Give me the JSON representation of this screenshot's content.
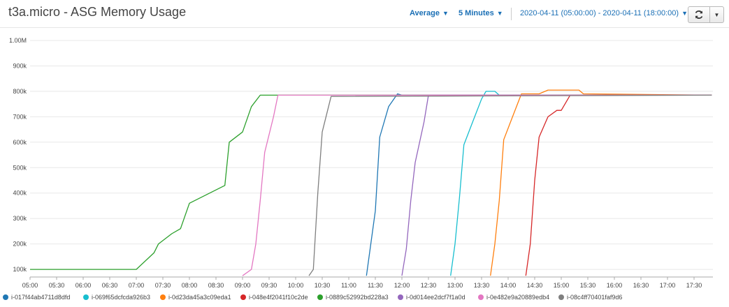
{
  "header": {
    "title": "t3a.micro - ASG Memory Usage",
    "statistic": "Average",
    "period": "5 Minutes",
    "range": "2020-04-11 (05:00:00) - 2020-04-11 (18:00:00)"
  },
  "colors": {
    "link": "#1a6fb5"
  },
  "chart_data": {
    "type": "line",
    "xlabel": "",
    "ylabel": "",
    "x_ticks": [
      "05:00",
      "05:30",
      "06:00",
      "06:30",
      "07:00",
      "07:30",
      "08:00",
      "08:30",
      "09:00",
      "09:30",
      "10:00",
      "10:30",
      "11:00",
      "11:30",
      "12:00",
      "12:30",
      "13:00",
      "13:30",
      "14:00",
      "14:30",
      "15:00",
      "15:30",
      "16:00",
      "16:30",
      "17:00",
      "17:30"
    ],
    "y_ticks": [
      "100k",
      "200k",
      "300k",
      "400k",
      "500k",
      "600k",
      "700k",
      "800k",
      "900k",
      "1.00M"
    ],
    "y_tick_values": [
      100000,
      200000,
      300000,
      400000,
      500000,
      600000,
      700000,
      800000,
      900000,
      1000000
    ],
    "xlim": [
      "05:00",
      "17:50"
    ],
    "ylim": [
      70000,
      1000000
    ],
    "grid": "horizontal",
    "legend_position": "bottom",
    "series": [
      {
        "name": "i-017f44ab4711d8dfd",
        "color": "#1f77b4",
        "points": [
          [
            "11:20",
            75000
          ],
          [
            "11:30",
            330000
          ],
          [
            "11:35",
            620000
          ],
          [
            "11:45",
            740000
          ],
          [
            "11:55",
            790000
          ],
          [
            "12:00",
            785000
          ],
          [
            "17:50",
            785000
          ]
        ]
      },
      {
        "name": "i-069f65dcfcda926b3",
        "color": "#17becf",
        "points": [
          [
            "12:55",
            75000
          ],
          [
            "13:00",
            200000
          ],
          [
            "13:05",
            380000
          ],
          [
            "13:10",
            590000
          ],
          [
            "13:20",
            680000
          ],
          [
            "13:30",
            770000
          ],
          [
            "13:35",
            800000
          ],
          [
            "13:45",
            800000
          ],
          [
            "13:50",
            785000
          ],
          [
            "17:50",
            785000
          ]
        ]
      },
      {
        "name": "i-0d23da45a3c09eda1",
        "color": "#ff7f0e",
        "points": [
          [
            "13:40",
            75000
          ],
          [
            "13:45",
            200000
          ],
          [
            "13:50",
            370000
          ],
          [
            "13:55",
            610000
          ],
          [
            "14:05",
            700000
          ],
          [
            "14:15",
            790000
          ],
          [
            "14:35",
            790000
          ],
          [
            "14:45",
            805000
          ],
          [
            "15:20",
            805000
          ],
          [
            "15:25",
            790000
          ],
          [
            "17:50",
            785000
          ]
        ]
      },
      {
        "name": "i-048e4f2041f10c2de",
        "color": "#d62728",
        "points": [
          [
            "14:20",
            75000
          ],
          [
            "14:25",
            200000
          ],
          [
            "14:30",
            450000
          ],
          [
            "14:35",
            620000
          ],
          [
            "14:45",
            700000
          ],
          [
            "14:55",
            725000
          ],
          [
            "15:00",
            725000
          ],
          [
            "15:10",
            785000
          ],
          [
            "17:50",
            785000
          ]
        ]
      },
      {
        "name": "i-0889c52992bd228a3",
        "color": "#2ca02c",
        "points": [
          [
            "05:00",
            100000
          ],
          [
            "05:30",
            100000
          ],
          [
            "07:00",
            100000
          ],
          [
            "07:20",
            165000
          ],
          [
            "07:25",
            200000
          ],
          [
            "07:40",
            240000
          ],
          [
            "07:50",
            260000
          ],
          [
            "08:00",
            360000
          ],
          [
            "08:40",
            430000
          ],
          [
            "08:45",
            600000
          ],
          [
            "09:00",
            640000
          ],
          [
            "09:10",
            740000
          ],
          [
            "09:20",
            785000
          ],
          [
            "17:50",
            785000
          ]
        ]
      },
      {
        "name": "i-0d014ee2dcf7f1a0d",
        "color": "#9467bd",
        "points": [
          [
            "12:00",
            75000
          ],
          [
            "12:05",
            180000
          ],
          [
            "12:10",
            370000
          ],
          [
            "12:15",
            520000
          ],
          [
            "12:25",
            680000
          ],
          [
            "12:30",
            785000
          ],
          [
            "17:50",
            785000
          ]
        ]
      },
      {
        "name": "i-0e482e9a20889edb4",
        "color": "#e377c2",
        "points": [
          [
            "09:00",
            75000
          ],
          [
            "09:10",
            100000
          ],
          [
            "09:15",
            200000
          ],
          [
            "09:20",
            370000
          ],
          [
            "09:25",
            560000
          ],
          [
            "09:35",
            700000
          ],
          [
            "09:40",
            785000
          ],
          [
            "17:50",
            785000
          ]
        ]
      },
      {
        "name": "i-08c4ff70401faf9d6",
        "color": "#7f7f7f",
        "points": [
          [
            "10:15",
            75000
          ],
          [
            "10:20",
            100000
          ],
          [
            "10:25",
            400000
          ],
          [
            "10:30",
            640000
          ],
          [
            "10:40",
            780000
          ],
          [
            "17:50",
            785000
          ]
        ]
      }
    ]
  }
}
